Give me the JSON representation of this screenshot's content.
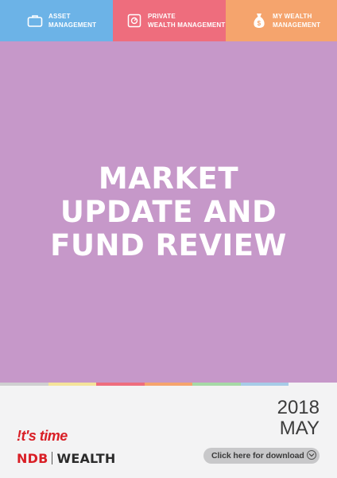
{
  "nav": {
    "tabs": [
      {
        "line1": "ASSET",
        "line2": "MANAGEMENT",
        "icon": "briefcase-icon",
        "color": "#6cb3e7"
      },
      {
        "line1": "PRIVATE",
        "line2": "WEALTH MANAGEMENT",
        "icon": "safe-icon",
        "color": "#ee6d7d"
      },
      {
        "line1": "MY WEALTH",
        "line2": "MANAGEMENT",
        "icon": "money-bag-icon",
        "color": "#f5a46d"
      }
    ]
  },
  "hero": {
    "title_lines": [
      "MARKET",
      "UPDATE AND",
      "FUND REVIEW"
    ],
    "background": "#c698c9"
  },
  "color_strip": [
    "#cfcfd1",
    "#f4e39a",
    "#ee6d7d",
    "#f5a46d",
    "#a6d9a6",
    "#a7cbe7",
    "#f3f3f4"
  ],
  "footer": {
    "year": "2018",
    "month": "MAY",
    "tagline": "!t's time",
    "brand": {
      "left": "NDB",
      "right": "WEALTH"
    },
    "download_label": "Click here for download",
    "download_icon": "chevron-down-icon"
  }
}
